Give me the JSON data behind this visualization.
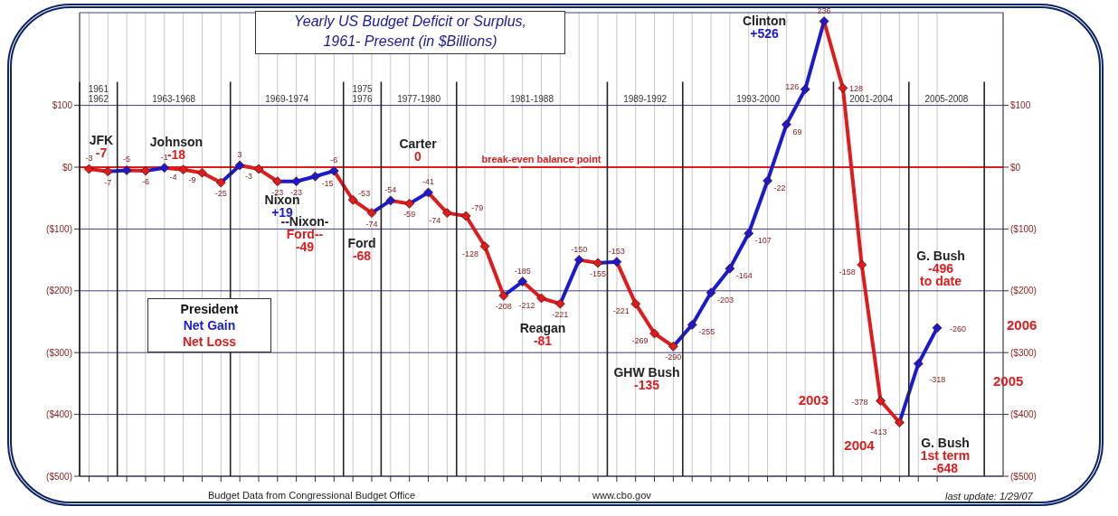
{
  "chart_data": {
    "type": "line",
    "title": "Yearly US Budget Deficit or Surplus,",
    "subtitle": "1961- Present (in $Billions)",
    "legend_title": "President",
    "legend": "left",
    "grid": true,
    "marker": "diamond",
    "line_style": "solid",
    "data_labels": true,
    "categories": [
      null,
      null,
      null,
      null,
      null,
      null,
      null,
      null,
      null,
      null,
      null,
      null,
      null,
      null,
      null,
      null,
      null,
      null,
      null,
      null,
      null,
      null,
      null,
      null,
      null,
      null,
      null,
      null,
      null,
      null,
      null,
      null,
      null,
      null,
      null,
      null,
      null,
      null,
      null,
      null,
      null,
      null,
      null,
      null,
      null,
      null
    ],
    "series": [
      {
        "values": [
          -3,
          -7,
          -5,
          -6,
          -1,
          -4,
          -9,
          -25,
          3,
          -3,
          -23,
          -23,
          -15,
          -6,
          -53,
          -74,
          -54,
          -59,
          -41,
          -74,
          -79,
          -128,
          -208,
          -185,
          -212,
          -221,
          -150,
          -155,
          -153,
          -221,
          -269,
          -290,
          -255,
          -203,
          -164,
          -107,
          -22,
          69,
          126,
          236,
          128,
          -158,
          -378,
          -413,
          -318,
          -260
        ],
        "colors": [
          "#e01b1b",
          "#e01b1b",
          "#1a1ad2",
          "#e01b1b",
          "#1a1ad2",
          "#e01b1b",
          "#e01b1b",
          "#e01b1b",
          "#1a1ad2",
          "#e01b1b",
          "#e01b1b",
          "#1a1ad2",
          "#1a1ad2",
          "#1a1ad2",
          "#e01b1b",
          "#e01b1b",
          "#1a1ad2",
          "#e01b1b",
          "#1a1ad2",
          "#e01b1b",
          "#e01b1b",
          "#e01b1b",
          "#e01b1b",
          "#1a1ad2",
          "#e01b1b",
          "#e01b1b",
          "#1a1ad2",
          "#e01b1b",
          "#1a1ad2",
          "#e01b1b",
          "#e01b1b",
          "#e01b1b",
          "#1a1ad2",
          "#1a1ad2",
          "#1a1ad2",
          "#1a1ad2",
          "#1a1ad2",
          "#1a1ad2",
          "#1a1ad2",
          "#1a1ad2",
          "#e01b1b",
          "#e01b1b",
          "#e01b1b",
          "#e01b1b",
          "#1a1ad2",
          "#1a1ad2"
        ]
      }
    ],
    "ylim": [
      -500,
      250
    ],
    "yticks": [
      {
        "value": 100,
        "label": "$100"
      },
      {
        "value": 0,
        "label": "$0"
      },
      {
        "value": -100,
        "label": "($100)"
      },
      {
        "value": -200,
        "label": "($200)"
      },
      {
        "value": -300,
        "label": "($300)"
      },
      {
        "value": -400,
        "label": "($400)"
      },
      {
        "value": -500,
        "label": "($500)"
      }
    ],
    "y2lim": [
      -500,
      250
    ],
    "y2ticks": [
      {
        "value": 100,
        "label": "$100"
      },
      {
        "value": 0,
        "label": "$0"
      },
      {
        "value": -100,
        "label": "($100)"
      },
      {
        "value": -200,
        "label": "($200)"
      },
      {
        "value": -300,
        "label": "($300)"
      },
      {
        "value": -400,
        "label": "($400)"
      },
      {
        "value": -500,
        "label": "($500)"
      }
    ],
    "ref_lines": [
      {
        "axis": "y",
        "value": 0,
        "label": "break-even balance point",
        "color": "#e01b1b"
      }
    ],
    "annotations": [
      "JFK\n-7",
      "Johnson\n-18",
      "Nixon\n+19",
      "--Nixon-\nFord--\n-49",
      "Ford\n-68",
      "Carter\n0",
      "Reagan\n-81",
      "GHW Bush\n-135",
      "Clinton\n+526",
      "G. Bush\n-496\nto date",
      "G. Bush\n1st term\n-648",
      "2003",
      "2004",
      "2005",
      "2006",
      "Budget Data from Congressional Budget Office",
      "www.cbo.gov",
      "last update: 1/29/07",
      "1961\n1962",
      "1963-1968",
      "1969-1974",
      "1975\n1976",
      "1977-1980",
      "1981-1988",
      "1989-1992",
      "1993-2000",
      "2001-2004",
      "2005-2008",
      "Net Gain",
      "Net Loss"
    ]
  }
}
